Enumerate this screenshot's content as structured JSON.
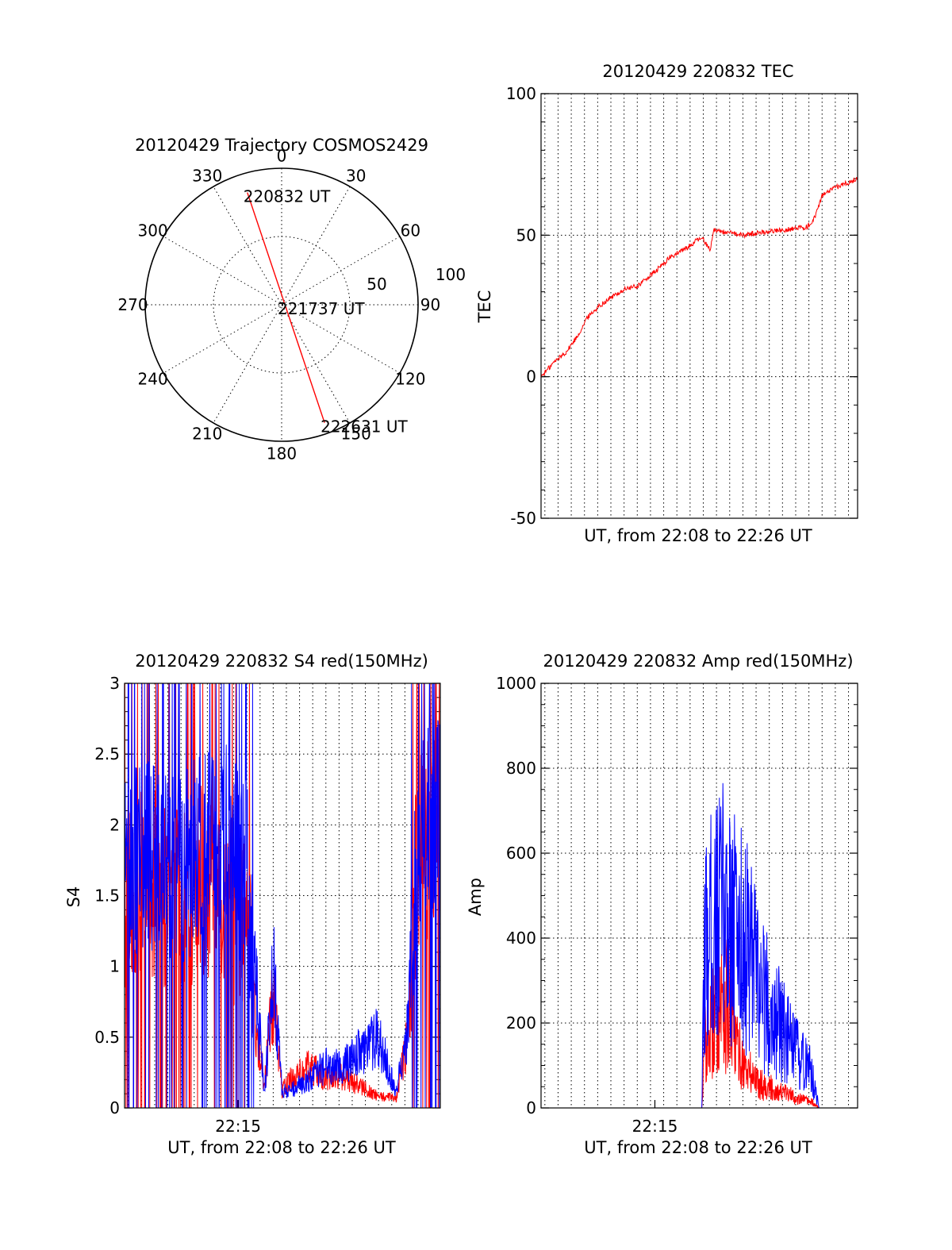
{
  "chart_data": [
    {
      "type": "polar",
      "title": "20120429 Trajectory COSMOS2429",
      "azimuth_labels": [
        "0",
        "30",
        "60",
        "90",
        "120",
        "150",
        "180",
        "210",
        "240",
        "270",
        "300",
        "330"
      ],
      "radius_labels": [
        "50",
        "100"
      ],
      "rlim": [
        0,
        100
      ],
      "grid": true,
      "series": [
        {
          "color": "#ff0000",
          "points": [
            {
              "az": 343,
              "r": 86
            },
            {
              "az": 160,
              "r": 92
            }
          ]
        }
      ],
      "annotations": [
        {
          "text": "220832 UT",
          "az": 343,
          "r": 86
        },
        {
          "text": "221737 UT",
          "az": 0,
          "r": 0
        },
        {
          "text": "222631 UT",
          "az": 160,
          "r": 92
        }
      ]
    },
    {
      "type": "line",
      "title": "20120429 220832 TEC",
      "xlabel": "UT, from 22:08 to 22:26 UT",
      "ylabel": "TEC",
      "xlim": [
        "22:08:32",
        "22:26:31"
      ],
      "ylim": [
        -50,
        100
      ],
      "yticks": [
        "-50",
        "0",
        "50",
        "100"
      ],
      "xticks": [],
      "grid": true,
      "series": [
        {
          "color": "#ff0000",
          "x": [
            "22:08:32",
            "22:09:15",
            "22:10:00",
            "22:10:40",
            "22:11:10",
            "22:11:50",
            "22:12:30",
            "22:13:20",
            "22:14:00",
            "22:15:00",
            "22:15:50",
            "22:16:40",
            "22:17:10",
            "22:17:20",
            "22:17:40",
            "22:18:10",
            "22:18:20",
            "22:19:00",
            "22:20:00",
            "22:21:00",
            "22:22:30",
            "22:23:40",
            "22:24:00",
            "22:24:30",
            "22:25:20",
            "22:26:31"
          ],
          "y": [
            0,
            5,
            9,
            15,
            21,
            25,
            28,
            31,
            32,
            37,
            42,
            45,
            47,
            48,
            49,
            45,
            52,
            51,
            50,
            51,
            52,
            53,
            55,
            64,
            67,
            70
          ]
        }
      ]
    },
    {
      "type": "line",
      "title": "20120429 220832 S4 red(150MHz)",
      "xlabel": "UT, from 22:08 to 22:26 UT",
      "ylabel": "S4",
      "xlim": [
        "22:08:32",
        "22:26:31"
      ],
      "ylim": [
        0,
        3
      ],
      "yticks": [
        "0",
        "0.5",
        "1",
        "1.5",
        "2",
        "2.5",
        "3"
      ],
      "xticks": [
        "22:15"
      ],
      "grid": true,
      "series": [
        {
          "color": "#ff0000",
          "x": [
            "22:08:32",
            "22:10:00",
            "22:11:30",
            "22:13:00",
            "22:14:30",
            "22:15:30",
            "22:16:00",
            "22:16:30",
            "22:17:00",
            "22:17:30",
            "22:18:00",
            "22:19:00",
            "22:20:00",
            "22:21:00",
            "22:22:00",
            "22:23:00",
            "22:24:00",
            "22:24:40",
            "22:25:10",
            "22:26:31"
          ],
          "y": [
            1.5,
            1.6,
            1.5,
            1.6,
            1.4,
            1.3,
            0.6,
            0.15,
            0.8,
            0.12,
            0.2,
            0.3,
            0.2,
            0.22,
            0.15,
            0.08,
            0.07,
            0.5,
            1.8,
            2.0
          ]
        },
        {
          "color": "#0000ff",
          "x": [
            "22:08:32",
            "22:10:00",
            "22:11:30",
            "22:13:00",
            "22:14:30",
            "22:15:30",
            "22:16:00",
            "22:16:30",
            "22:17:00",
            "22:17:30",
            "22:18:00",
            "22:19:00",
            "22:20:00",
            "22:21:00",
            "22:22:00",
            "22:23:00",
            "22:24:00",
            "22:24:40",
            "22:25:10",
            "22:26:31"
          ],
          "y": [
            1.7,
            1.8,
            1.7,
            1.8,
            1.9,
            1.6,
            0.9,
            0.1,
            1.0,
            0.12,
            0.12,
            0.2,
            0.3,
            0.3,
            0.4,
            0.5,
            0.1,
            0.6,
            1.9,
            2.1
          ]
        }
      ]
    },
    {
      "type": "line",
      "title": "20120429 220832 Amp red(150MHz)",
      "xlabel": "UT, from 22:08 to 22:26 UT",
      "ylabel": "Amp",
      "xlim": [
        "22:08:32",
        "22:26:31"
      ],
      "ylim": [
        0,
        1000
      ],
      "yticks": [
        "0",
        "200",
        "400",
        "600",
        "800",
        "1000"
      ],
      "xticks": [
        "22:15"
      ],
      "grid": true,
      "series": [
        {
          "color": "#ff0000",
          "x": [
            "22:08:32",
            "22:17:40",
            "22:17:50",
            "22:18:10",
            "22:18:40",
            "22:19:10",
            "22:19:40",
            "22:20:10",
            "22:20:40",
            "22:21:20",
            "22:22:00",
            "22:22:40",
            "22:23:20",
            "22:23:50",
            "22:24:20",
            "22:26:31"
          ],
          "y": [
            0,
            0,
            150,
            180,
            250,
            230,
            140,
            90,
            70,
            50,
            40,
            30,
            20,
            15,
            0,
            0
          ]
        },
        {
          "color": "#0000ff",
          "x": [
            "22:08:32",
            "22:17:40",
            "22:17:50",
            "22:18:10",
            "22:18:40",
            "22:19:10",
            "22:19:40",
            "22:20:10",
            "22:20:40",
            "22:21:20",
            "22:22:00",
            "22:22:40",
            "22:23:20",
            "22:23:50",
            "22:24:20",
            "22:26:31"
          ],
          "y": [
            0,
            0,
            380,
            420,
            450,
            480,
            420,
            380,
            320,
            250,
            200,
            150,
            110,
            90,
            0,
            0
          ]
        }
      ]
    }
  ]
}
